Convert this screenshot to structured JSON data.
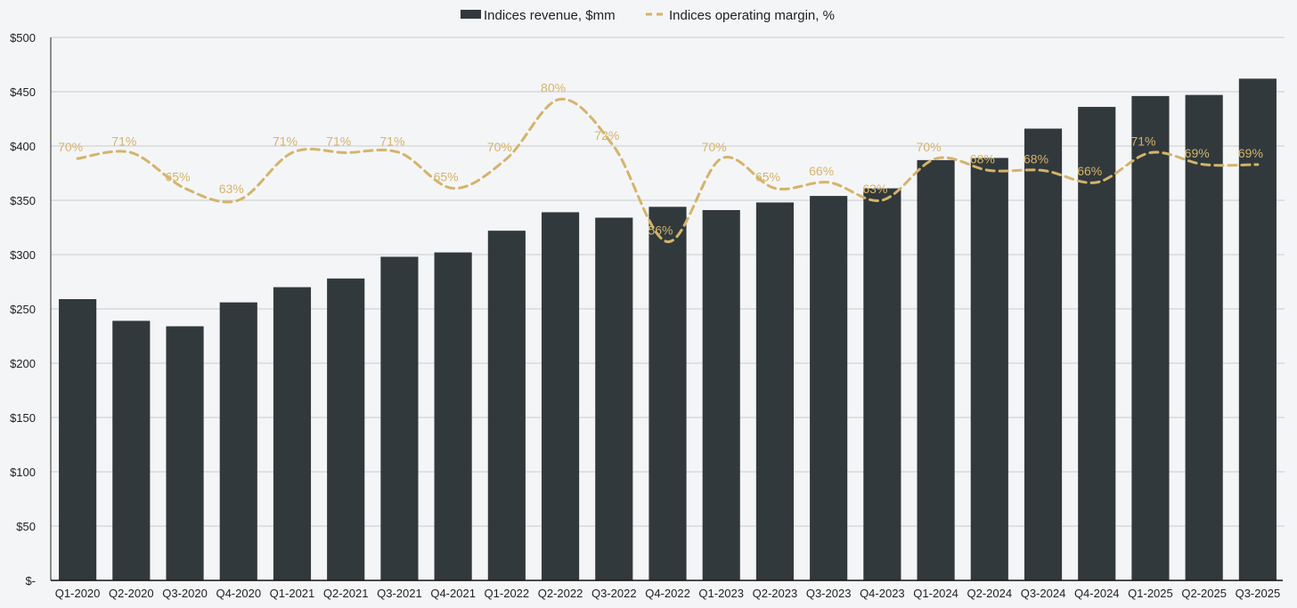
{
  "chart_data": {
    "type": "bar",
    "title": "",
    "xlabel": "",
    "ylabel": "",
    "ylim": [
      0,
      500
    ],
    "yticks": [
      "$-",
      "$50",
      "$100",
      "$150",
      "$200",
      "$250",
      "$300",
      "$350",
      "$400",
      "$450",
      "$500"
    ],
    "grid": true,
    "legend_position": "top-center",
    "categories": [
      "Q1-2020",
      "Q2-2020",
      "Q3-2020",
      "Q4-2020",
      "Q1-2021",
      "Q2-2021",
      "Q3-2021",
      "Q4-2021",
      "Q1-2022",
      "Q2-2022",
      "Q3-2022",
      "Q4-2022",
      "Q1-2023",
      "Q2-2023",
      "Q3-2023",
      "Q4-2023",
      "Q1-2024",
      "Q2-2024",
      "Q3-2024",
      "Q4-2024",
      "Q1-2025",
      "Q2-2025",
      "Q3-2025"
    ],
    "series": [
      {
        "name": "Indices revenue, $mm",
        "type": "bar",
        "color": "#32393c",
        "values": [
          259,
          239,
          234,
          256,
          270,
          278,
          298,
          302,
          322,
          339,
          334,
          344,
          341,
          348,
          354,
          361,
          387,
          389,
          416,
          436,
          446,
          447,
          462
        ]
      },
      {
        "name": "Indices operating margin, %",
        "type": "line",
        "style": "dashed",
        "color": "#d4b46a",
        "secondary_axis_range": [
          -1,
          90.4
        ],
        "values": [
          70,
          71,
          65,
          63,
          71,
          71,
          71,
          65,
          70,
          80,
          72,
          56,
          70,
          65,
          66,
          63,
          70,
          68,
          68,
          66,
          71,
          69,
          69
        ],
        "labels": [
          "70%",
          "71%",
          "65%",
          "63%",
          "71%",
          "71%",
          "71%",
          "65%",
          "70%",
          "80%",
          "72%",
          "56%",
          "70%",
          "65%",
          "66%",
          "63%",
          "70%",
          "68%",
          "68%",
          "66%",
          "71%",
          "69%",
          "69%"
        ]
      }
    ]
  }
}
